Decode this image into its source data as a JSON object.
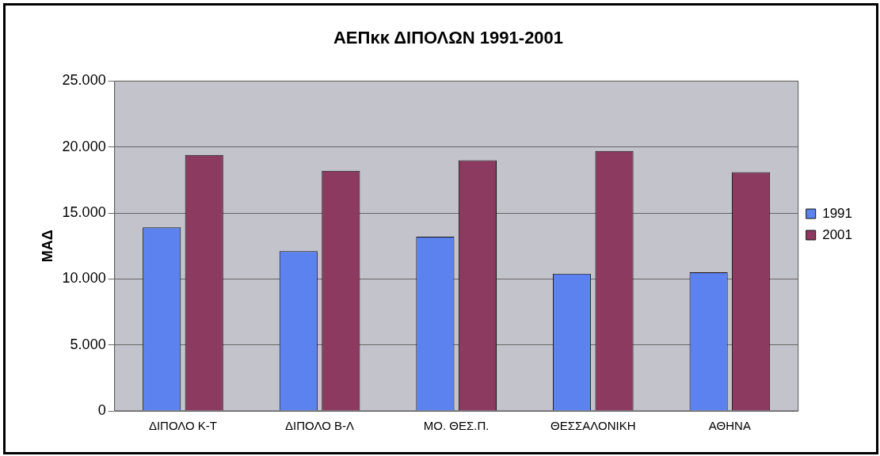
{
  "chart_data": {
    "type": "bar",
    "title": "ΑΕΠκκ ΔΙΠΟΛΩΝ 1991-2001",
    "ylabel": "ΜΑΔ",
    "categories": [
      "ΔΙΠΟΛΟ Κ-Τ",
      "ΔΙΠΟΛΟ Β-Λ",
      "ΜΟ. ΘΕΣ.Π.",
      "ΘΕΣΣΑΛΟΝΙΚΗ",
      "ΑΘΗΝΑ"
    ],
    "series": [
      {
        "name": "1991",
        "color": "#5b82ee",
        "values": [
          13900,
          12100,
          13200,
          10400,
          10500
        ]
      },
      {
        "name": "2001",
        "color": "#8c3a60",
        "values": [
          19400,
          18200,
          19000,
          19700,
          18100
        ]
      }
    ],
    "ylim": [
      0,
      25000
    ],
    "yticks": [
      {
        "value": 0,
        "label": "0"
      },
      {
        "value": 5000,
        "label": "5.000"
      },
      {
        "value": 10000,
        "label": "10.000"
      },
      {
        "value": 15000,
        "label": "15.000"
      },
      {
        "value": 20000,
        "label": "20.000"
      },
      {
        "value": 25000,
        "label": "25.000"
      }
    ],
    "grid": "y",
    "legend": "right"
  }
}
